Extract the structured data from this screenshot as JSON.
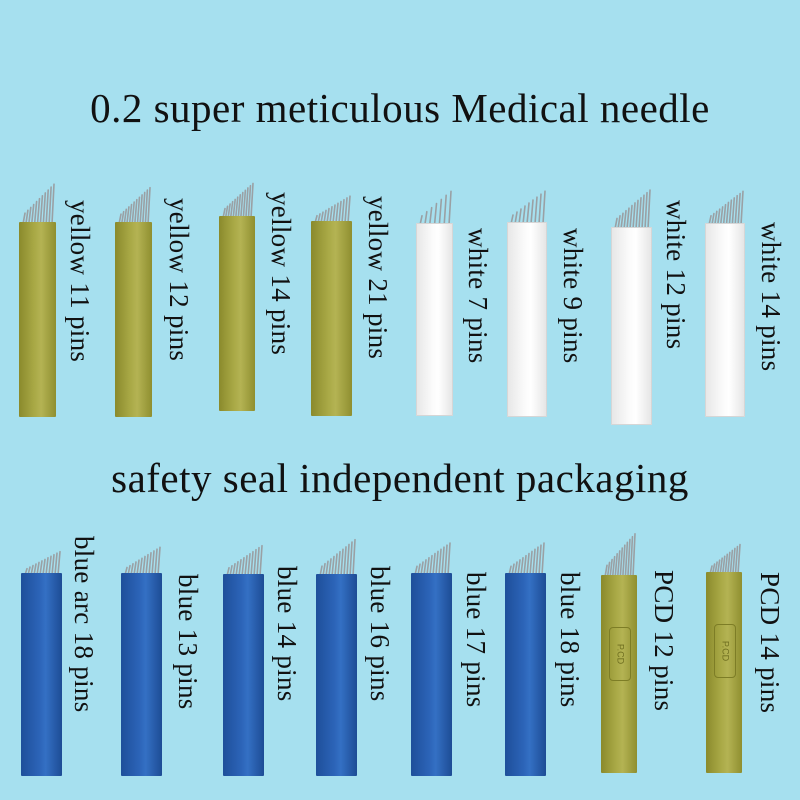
{
  "header": {
    "title": "0.2 super meticulous Medical needle",
    "subtitle": "safety seal independent packaging"
  },
  "colors": {
    "background": "#a6e0ef",
    "yellow": "#a8a845",
    "white": "#fbfbfb",
    "blue": "#2c64b8",
    "tip": "#9aa0a4"
  },
  "row1": [
    {
      "label": "yellow 11 pins",
      "color": "yellow",
      "pins": 11
    },
    {
      "label": "yellow 12 pins",
      "color": "yellow",
      "pins": 12
    },
    {
      "label": "yellow 14 pins",
      "color": "yellow",
      "pins": 14
    },
    {
      "label": "yellow 21 pins",
      "color": "yellow",
      "pins": 21
    },
    {
      "label": "white 7 pins",
      "color": "white",
      "pins": 7
    },
    {
      "label": "white 9 pins",
      "color": "white",
      "pins": 9
    },
    {
      "label": "white 12 pins",
      "color": "white",
      "pins": 12
    },
    {
      "label": "white 14 pins",
      "color": "white",
      "pins": 14
    }
  ],
  "row2": [
    {
      "label": "blue arc 18 pins",
      "color": "blue",
      "pins": 18
    },
    {
      "label": "blue 13 pins",
      "color": "blue",
      "pins": 13
    },
    {
      "label": "blue 14 pins",
      "color": "blue",
      "pins": 14
    },
    {
      "label": "blue 16 pins",
      "color": "blue",
      "pins": 16
    },
    {
      "label": "blue 17 pins",
      "color": "blue",
      "pins": 17
    },
    {
      "label": "blue 18 pins",
      "color": "blue",
      "pins": 18
    },
    {
      "label": "PCD 12 pins",
      "color": "pcd",
      "pins": 12,
      "mark": "P.CD"
    },
    {
      "label": "PCD 14 pins",
      "color": "pcd",
      "pins": 14,
      "mark": "P.CD"
    }
  ]
}
